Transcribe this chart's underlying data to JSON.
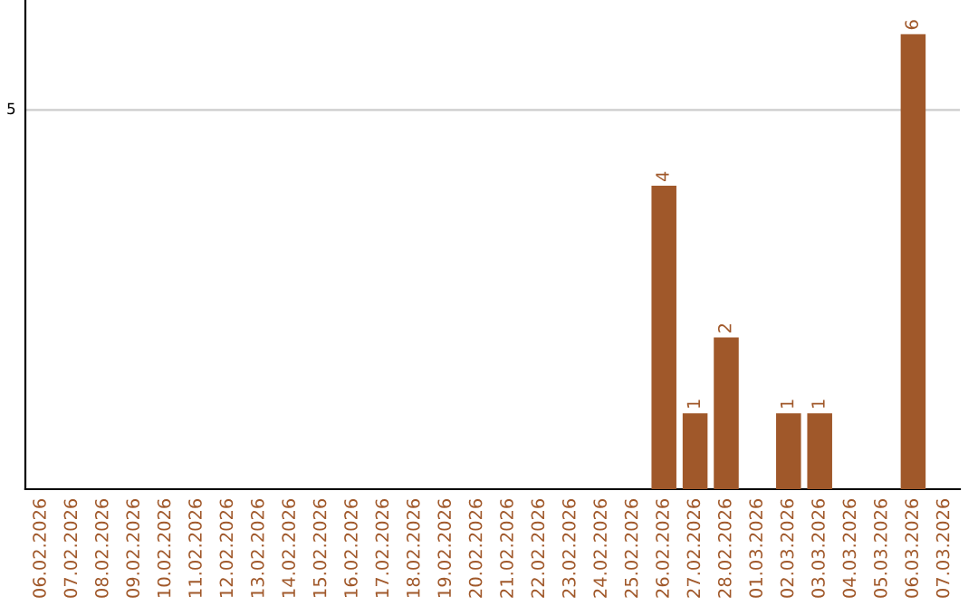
{
  "chart_data": {
    "type": "bar",
    "categories": [
      "06.02.2026",
      "07.02.2026",
      "08.02.2026",
      "09.02.2026",
      "10.02.2026",
      "11.02.2026",
      "12.02.2026",
      "13.02.2026",
      "14.02.2026",
      "15.02.2026",
      "16.02.2026",
      "17.02.2026",
      "18.02.2026",
      "19.02.2026",
      "20.02.2026",
      "21.02.2026",
      "22.02.2026",
      "23.02.2026",
      "24.02.2026",
      "25.02.2026",
      "26.02.2026",
      "27.02.2026",
      "28.02.2026",
      "01.03.2026",
      "02.03.2026",
      "03.03.2026",
      "04.03.2026",
      "05.03.2026",
      "06.03.2026",
      "07.03.2026"
    ],
    "values": [
      null,
      null,
      null,
      null,
      null,
      null,
      null,
      null,
      null,
      null,
      null,
      null,
      null,
      null,
      null,
      null,
      null,
      null,
      null,
      null,
      4,
      1,
      2,
      null,
      1,
      1,
      null,
      null,
      6,
      null
    ],
    "data_labels": true,
    "ylim": [
      0,
      6.45
    ],
    "color": "#a0582a",
    "ref_lines": [
      {
        "axis": "y",
        "value": 5,
        "label": "5",
        "color": "#cccccc"
      }
    ]
  }
}
